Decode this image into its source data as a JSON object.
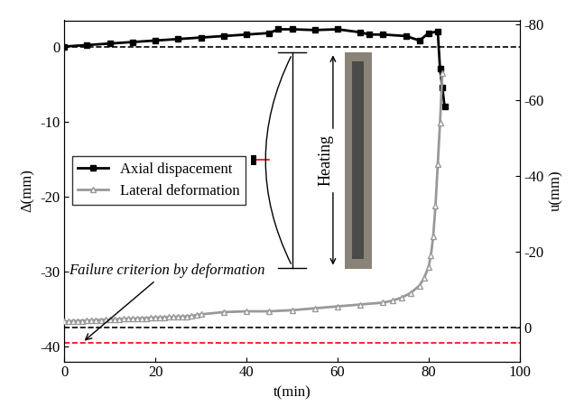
{
  "chart_data": {
    "type": "line",
    "x_label": "t(min)",
    "y_label": "Δ(mm)",
    "y2_label": "u(mm)",
    "xlim": [
      0,
      100
    ],
    "xticks": [
      0,
      20,
      40,
      60,
      80,
      100
    ],
    "ylim": [
      -42,
      3.5
    ],
    "yticks": [
      -40,
      -30,
      -20,
      -10,
      0
    ],
    "y2lim": [
      9,
      -81
    ],
    "y2ticks": [
      -80,
      -60,
      -40,
      -20,
      0
    ],
    "legend": "center left",
    "series": [
      {
        "name": "Axial dispacement",
        "color": "#000000",
        "marker": "s",
        "line_style": "solid",
        "axis": "y",
        "x": [
          0,
          5,
          10,
          15,
          20,
          25,
          30,
          35,
          40,
          45,
          47,
          50,
          55,
          60,
          65,
          67,
          70,
          75,
          78,
          80,
          82,
          82.5,
          83,
          83.5
        ],
        "values": [
          0,
          0.2,
          0.4,
          0.6,
          0.8,
          1.0,
          1.2,
          1.4,
          1.6,
          1.8,
          2.3,
          2.3,
          2.2,
          2.3,
          1.9,
          1.6,
          1.6,
          1.4,
          0.8,
          1.8,
          2.0,
          -3.0,
          -5.5,
          -8.0
        ]
      },
      {
        "name": "Lateral deformation",
        "color": "#999999",
        "marker": "^",
        "line_style": "solid",
        "axis": "y2",
        "x": [
          0,
          1,
          2,
          3,
          4,
          5,
          6,
          7,
          8,
          9,
          10,
          11,
          12,
          13,
          14,
          15,
          16,
          17,
          18,
          19,
          20,
          21,
          22,
          23,
          24,
          25,
          26,
          27,
          28,
          29,
          30,
          35,
          40,
          45,
          50,
          55,
          60,
          65,
          70,
          72,
          74,
          76,
          78,
          79,
          80,
          80.5,
          81,
          81.5,
          82,
          82.5,
          83
        ],
        "values": [
          -1.5,
          -1.6,
          -1.6,
          -1.7,
          -1.7,
          -1.8,
          -1.8,
          -1.9,
          -1.9,
          -2.0,
          -2.0,
          -2.1,
          -2.1,
          -2.2,
          -2.2,
          -2.3,
          -2.3,
          -2.4,
          -2.4,
          -2.5,
          -2.5,
          -2.6,
          -2.6,
          -2.7,
          -2.7,
          -2.8,
          -2.8,
          -2.9,
          -3.0,
          -3.2,
          -3.4,
          -4.0,
          -4.2,
          -4.2,
          -4.5,
          -5.0,
          -5.5,
          -6.0,
          -6.5,
          -7.0,
          -7.8,
          -9.0,
          -11.0,
          -13.0,
          -16.0,
          -19.0,
          -24.0,
          -32.0,
          -43.0,
          -54.0,
          -67.0
        ]
      }
    ],
    "hlines": [
      {
        "axis": "y",
        "value": 0,
        "color": "#000000"
      },
      {
        "axis": "y2",
        "value": 0,
        "color": "#000000"
      },
      {
        "axis": "y2",
        "value": 4,
        "color": "#ff0000"
      }
    ],
    "annotations": [
      {
        "text": "Failure criterion by deformation",
        "x": 4,
        "y": 4,
        "axis": "y2"
      },
      {
        "text": "Heating"
      }
    ]
  }
}
